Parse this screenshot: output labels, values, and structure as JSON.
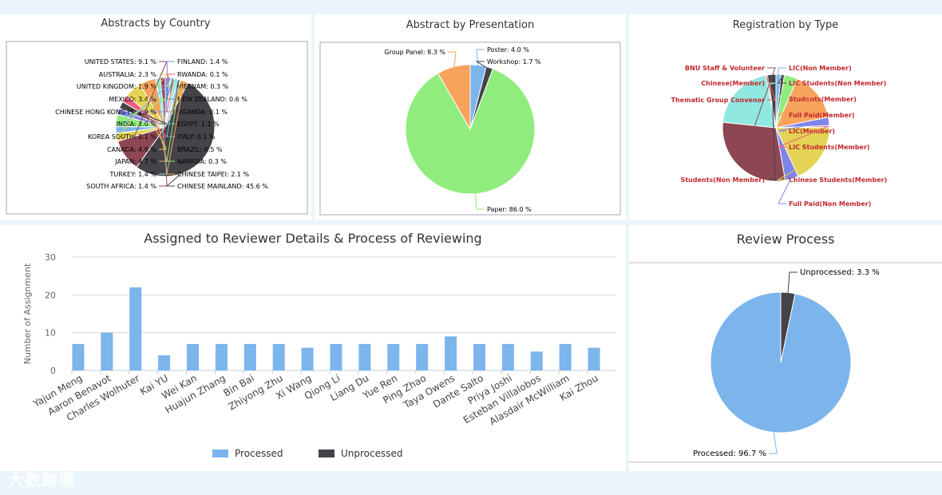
{
  "colors": {
    "page_bg": "#eaf5fb",
    "processed": "#7cb5ec",
    "unprocessed": "#434348",
    "grid": "#c0d0e0"
  },
  "chart_data": [
    {
      "id": "country",
      "type": "pie",
      "title": "Abstracts by Country",
      "series": [
        {
          "name": "",
          "data": [
            {
              "label": "FINLAND",
              "value": 1.4,
              "color": "#8085e9"
            },
            {
              "label": "RWANDA",
              "value": 0.1,
              "color": "#f15c80"
            },
            {
              "label": "VIETNAM",
              "value": 0.3,
              "color": "#e4d354"
            },
            {
              "label": "NEW ZEALAND",
              "value": 0.6,
              "color": "#2b908f"
            },
            {
              "label": "UGANDA",
              "value": 0.1,
              "color": "#f45b5b"
            },
            {
              "label": "EGYPT",
              "value": 1.1,
              "color": "#91e8e1"
            },
            {
              "label": "ITALY",
              "value": 0.1,
              "color": "#7cb5ec"
            },
            {
              "label": "BRAZIL",
              "value": 0.5,
              "color": "#434348"
            },
            {
              "label": "NAMIBIA",
              "value": 0.3,
              "color": "#90ed7d"
            },
            {
              "label": "CHINESE TAIPEI",
              "value": 2.1,
              "color": "#f7a35c"
            },
            {
              "label": "CHINESE MAINLAND",
              "value": 45.6,
              "color": "#434348"
            },
            {
              "label": "UNITED STATES",
              "value": 9.1,
              "color": "#8d4653"
            },
            {
              "label": "AUSTRALIA",
              "value": 2.3,
              "color": "#e4d354"
            },
            {
              "label": "UNITED KINGDOM",
              "value": 1.9,
              "color": "#7cb5ec"
            },
            {
              "label": "MEXICO",
              "value": 3.4,
              "color": "#90ed7d"
            },
            {
              "label": "CHINESE HONG KONG (S",
              "value": 1.9,
              "color": "#8085e9"
            },
            {
              "label": "INDIA",
              "value": 2.0,
              "color": "#434348"
            },
            {
              "label": "KOREA SOUTH",
              "value": 2.1,
              "color": "#f15c80"
            },
            {
              "label": "CANADA",
              "value": 4.8,
              "color": "#e4d354"
            },
            {
              "label": "JAPAN",
              "value": 4.7,
              "color": "#f7a35c"
            },
            {
              "label": "TURKEY",
              "value": 1.4,
              "color": "#91e8e1"
            },
            {
              "label": "SOUTH AFRICA",
              "value": 1.4,
              "color": "#8d4653"
            }
          ]
        }
      ],
      "label_format": "{label}: {value} %"
    },
    {
      "id": "presentation",
      "type": "pie",
      "title": "Abstract by Presentation",
      "series": [
        {
          "name": "",
          "data": [
            {
              "label": "Poster",
              "value": 4.0,
              "color": "#7cb5ec"
            },
            {
              "label": "Workshop",
              "value": 1.7,
              "color": "#434348"
            },
            {
              "label": "Paper",
              "value": 86.0,
              "color": "#90ed7d"
            },
            {
              "label": "Group Panel",
              "value": 8.3,
              "color": "#f7a35c"
            }
          ]
        }
      ],
      "label_format": "{label}: {value} %"
    },
    {
      "id": "registration",
      "type": "pie",
      "title": "Registration by Type",
      "series": [
        {
          "name": "",
          "data": [
            {
              "label": "LIC(Non Member)",
              "value": 1.5,
              "color": "#7cb5ec"
            },
            {
              "label": "LIC Students(Non Member)",
              "value": 1.0,
              "color": "#434348"
            },
            {
              "label": "Students(Member)",
              "value": 4.0,
              "color": "#90ed7d"
            },
            {
              "label": "Full Paid(Member)",
              "value": 15.0,
              "color": "#f7a35c"
            },
            {
              "label": "LIC(Member)",
              "value": 2.5,
              "color": "#8085e9"
            },
            {
              "label": "LIC Students(Member)",
              "value": 0.5,
              "color": "#f15c80"
            },
            {
              "label": "Chinese Students(Member)",
              "value": 18.0,
              "color": "#e4d354"
            },
            {
              "label": "Full Paid(Non Member)",
              "value": 4.0,
              "color": "#8085e9"
            },
            {
              "label": "BNU Staff & Volunteer",
              "value": 29.0,
              "color": "#8d4653"
            },
            {
              "label": "Chinese(Member)",
              "value": 20.0,
              "color": "#91e8e1"
            },
            {
              "label": "Thematic Group Convenor",
              "value": 0.5,
              "color": "#f45b5b"
            },
            {
              "label": "Students(Non Member)",
              "value": 2.5,
              "color": "#434348"
            }
          ]
        }
      ],
      "label_color": "#c0282d"
    },
    {
      "id": "reviewers",
      "type": "bar",
      "title": "Assigned to Reviewer Details & Process of Reviewing",
      "ylabel": "Number of Assignment",
      "ylim": [
        0,
        30
      ],
      "yticks": [
        0,
        10,
        20,
        30
      ],
      "categories": [
        "Yajun Meng",
        "Aaron Benavot",
        "Charles Wolhuter",
        "Kai YU",
        "Wei Kan",
        "Huajun Zhang",
        "Bin Bai",
        "Zhiyong Zhu",
        "Xi Wang",
        "Qiong Li",
        "Liang Du",
        "Yue Ren",
        "Ping Zhao",
        "Taya Owens",
        "Dante Salto",
        "Priya Joshi",
        "Esteban Villalobos",
        "Alasdair McWilliam",
        "Kai Zhou"
      ],
      "series": [
        {
          "name": "Processed",
          "color": "#7cb5ec",
          "values": [
            7,
            10,
            22,
            4,
            7,
            7,
            7,
            7,
            6,
            7,
            7,
            7,
            7,
            9,
            7,
            7,
            5,
            7,
            6
          ]
        },
        {
          "name": "Unprocessed",
          "color": "#434348",
          "values": [
            0,
            0,
            0,
            0,
            0,
            0,
            0,
            0,
            0,
            0,
            0,
            0,
            0,
            0,
            0,
            0,
            0,
            0,
            0
          ]
        }
      ],
      "grid": true,
      "legend_position": "bottom"
    },
    {
      "id": "review",
      "type": "pie",
      "title": "Review Process",
      "series": [
        {
          "name": "",
          "data": [
            {
              "label": "Unprocessed",
              "value": 3.3,
              "color": "#434348"
            },
            {
              "label": "Processed",
              "value": 96.7,
              "color": "#7cb5ec"
            }
          ]
        }
      ],
      "label_format": "{label}: {value} %"
    }
  ],
  "watermark": "大数跨境"
}
